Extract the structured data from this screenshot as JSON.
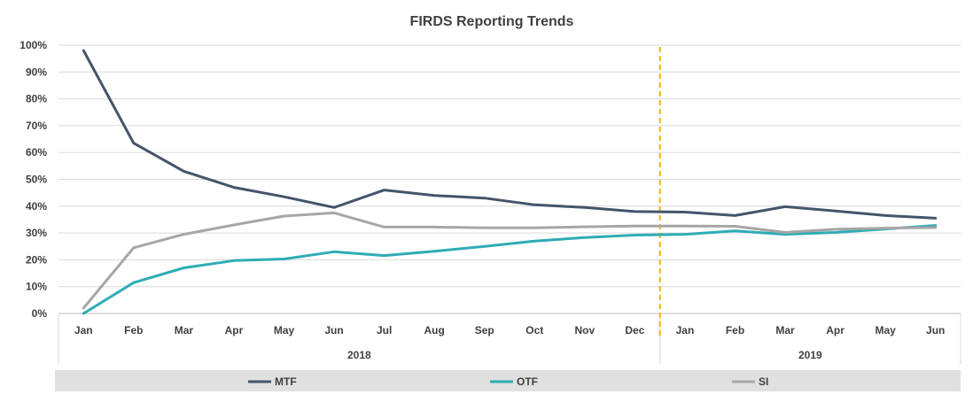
{
  "chart_data": {
    "type": "line",
    "title": "FIRDS Reporting Trends",
    "categories": [
      "Jan",
      "Feb",
      "Mar",
      "Apr",
      "May",
      "Jun",
      "Jul",
      "Aug",
      "Sep",
      "Oct",
      "Nov",
      "Dec",
      "Jan",
      "Feb",
      "Mar",
      "Apr",
      "May",
      "Jun"
    ],
    "category_groups": [
      {
        "label": "2018",
        "start": 0,
        "end": 11
      },
      {
        "label": "2019",
        "start": 12,
        "end": 17
      }
    ],
    "y_ticks": [
      "0%",
      "10%",
      "20%",
      "30%",
      "40%",
      "50%",
      "60%",
      "70%",
      "80%",
      "90%",
      "100%"
    ],
    "ylim": [
      0,
      100
    ],
    "grid": true,
    "legend_position": "bottom",
    "marker_line": {
      "between": [
        11,
        12
      ],
      "color": "#f0b400",
      "style": "dashed"
    },
    "series": [
      {
        "name": "MTF",
        "color": "#44546a",
        "values": [
          98,
          63.5,
          53,
          47,
          43.5,
          39.5,
          46,
          44,
          43,
          40.5,
          39.5,
          38,
          37.8,
          36.5,
          39.8,
          38.2,
          36.5,
          35.5
        ]
      },
      {
        "name": "OTF",
        "color": "#2eacb5",
        "values": [
          0,
          11.5,
          17,
          19.7,
          20.3,
          23,
          21.6,
          23.2,
          25,
          27,
          28.3,
          29.2,
          29.5,
          30.8,
          29.5,
          30.2,
          31.5,
          32.8
        ]
      },
      {
        "name": "SI",
        "color": "#a6a6a6",
        "values": [
          2,
          24.5,
          29.5,
          33,
          36.3,
          37.5,
          32.2,
          32.2,
          31.9,
          31.9,
          32.3,
          32.6,
          32.6,
          32.5,
          30.2,
          31.4,
          31.8,
          32
        ]
      }
    ]
  }
}
